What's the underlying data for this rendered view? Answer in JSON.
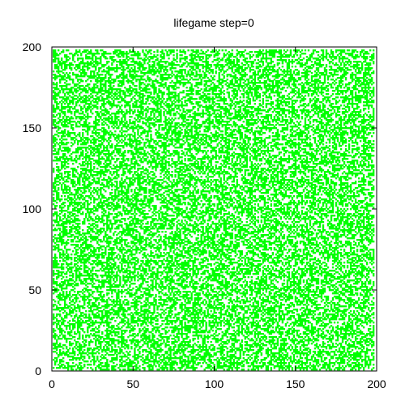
{
  "chart_data": {
    "type": "scatter",
    "title": "lifegame step=0",
    "xlabel": "",
    "ylabel": "",
    "xlim": [
      0,
      200
    ],
    "ylim": [
      0,
      200
    ],
    "xticks": [
      "0",
      "50",
      "100",
      "150",
      "200"
    ],
    "yticks": [
      "0",
      "50",
      "100",
      "150",
      "200"
    ],
    "grid": false,
    "legend": "none",
    "series": [
      {
        "marker_color": "#00ff00",
        "x_range": [
          1,
          198
        ],
        "y_range": [
          1,
          198
        ],
        "cell_size": 1,
        "alive_fraction": 0.5
      }
    ]
  }
}
